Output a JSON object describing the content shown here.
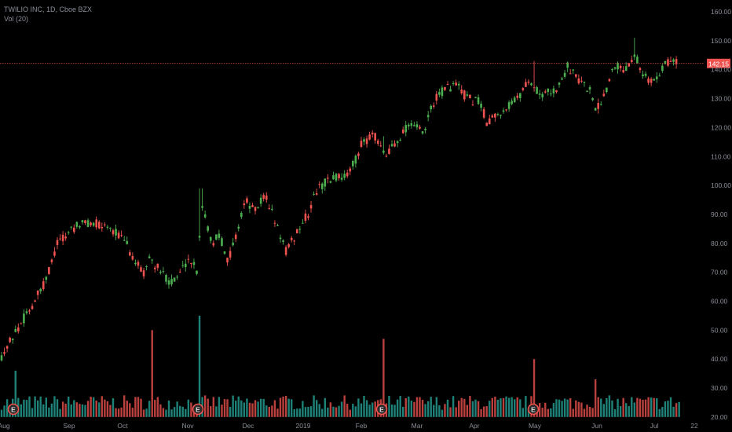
{
  "legend": {
    "symbol_line": "TWILIO INC, 1D, Cboe BZX",
    "volume_line": "Vol (20)"
  },
  "colors": {
    "background": "#000000",
    "up": "#26a69a",
    "down": "#ef5350",
    "candle_up": "#4caf50",
    "candle_down": "#ef5350",
    "price_line": "#ef5350",
    "axis_text": "#8a8e98",
    "earnings_badge": "#2b2b2b"
  },
  "chart_data": {
    "type": "candlestick",
    "title": "TWILIO INC, 1D, Cboe BZX",
    "y_axis": {
      "ticks": [
        "160.00",
        "150.00",
        "140.00",
        "130.00",
        "120.00",
        "110.00",
        "100.00",
        "90.00",
        "80.00",
        "70.00",
        "60.00",
        "50.00",
        "40.00",
        "30.00",
        "20.00"
      ],
      "range": [
        18,
        162
      ]
    },
    "x_axis": {
      "labels": [
        "Aug",
        "Sep",
        "Oct",
        "Nov",
        "Dec",
        "2019",
        "Feb",
        "Mar",
        "Apr",
        "May",
        "Jun",
        "Jul",
        "22"
      ]
    },
    "current_price": {
      "value": 142.15,
      "label": "142.15"
    },
    "earnings_markers": [
      "E",
      "E",
      "E",
      "E"
    ],
    "price_keypoints": [
      [
        57,
        66
      ],
      [
        75,
        82
      ],
      [
        83,
        81
      ],
      [
        88,
        85
      ],
      [
        110,
        87
      ],
      [
        140,
        86
      ],
      [
        160,
        80
      ],
      [
        172,
        74
      ],
      [
        182,
        69
      ],
      [
        190,
        75
      ],
      [
        205,
        70
      ],
      [
        220,
        66
      ],
      [
        230,
        70
      ],
      [
        240,
        75
      ],
      [
        252,
        70
      ],
      [
        256,
        95
      ],
      [
        262,
        88
      ],
      [
        270,
        80
      ],
      [
        280,
        83
      ],
      [
        290,
        74
      ],
      [
        300,
        82
      ],
      [
        312,
        95
      ],
      [
        325,
        91
      ],
      [
        338,
        97
      ],
      [
        352,
        86
      ],
      [
        365,
        77
      ],
      [
        380,
        85
      ],
      [
        392,
        90
      ],
      [
        402,
        98
      ],
      [
        415,
        101
      ],
      [
        430,
        103
      ],
      [
        445,
        104
      ],
      [
        460,
        114
      ],
      [
        475,
        118
      ],
      [
        490,
        110
      ],
      [
        500,
        114
      ],
      [
        512,
        118
      ],
      [
        525,
        122
      ],
      [
        540,
        117
      ],
      [
        550,
        128
      ],
      [
        565,
        133
      ],
      [
        580,
        135
      ],
      [
        595,
        130
      ],
      [
        610,
        129
      ],
      [
        620,
        122
      ],
      [
        640,
        126
      ],
      [
        660,
        130
      ],
      [
        672,
        137
      ],
      [
        682,
        133
      ],
      [
        690,
        131
      ],
      [
        700,
        132
      ],
      [
        712,
        134
      ],
      [
        722,
        141
      ],
      [
        735,
        137
      ],
      [
        750,
        133
      ],
      [
        760,
        126
      ],
      [
        770,
        132
      ],
      [
        782,
        142
      ],
      [
        795,
        140
      ],
      [
        808,
        146
      ],
      [
        822,
        137
      ],
      [
        835,
        136
      ],
      [
        848,
        143
      ],
      [
        858,
        143
      ]
    ],
    "price_spikes": [
      {
        "x": 256,
        "high": 99
      },
      {
        "x": 488,
        "high": 117
      },
      {
        "x": 681,
        "high": 143
      },
      {
        "x": 808,
        "high": 151
      }
    ],
    "volume_spikes": [
      {
        "x": 19,
        "value": 36
      },
      {
        "x": 195,
        "value": 50
      },
      {
        "x": 253,
        "value": 55
      },
      {
        "x": 489,
        "value": 47
      },
      {
        "x": 680,
        "value": 40
      },
      {
        "x": 757,
        "value": 33
      }
    ]
  }
}
